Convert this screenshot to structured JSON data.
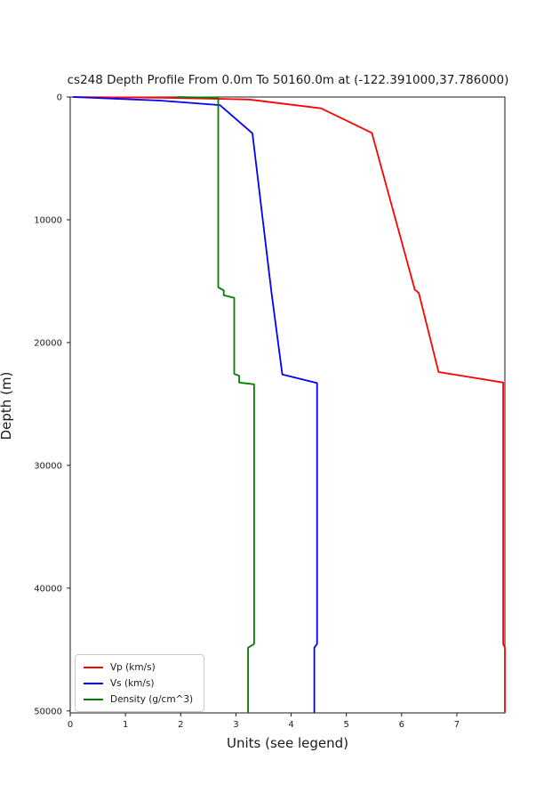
{
  "chart_data": {
    "type": "line",
    "title": "cs248 Depth Profile From 0.0m To 50160.0m at (-122.391000,37.786000)",
    "xlabel": "Units (see legend)",
    "ylabel": "Depth (m)",
    "xlim": [
      0,
      7.87
    ],
    "ylim": [
      0,
      50160
    ],
    "y_axis_direction": "depth-increases-downward",
    "xticks": [
      0,
      1,
      2,
      3,
      4,
      5,
      6,
      7
    ],
    "yticks": [
      0,
      10000,
      20000,
      30000,
      40000,
      50000
    ],
    "grid": false,
    "legend_position": "lower left",
    "series": [
      {
        "name": "Vp (km/s)",
        "color": "#ff0000",
        "points": [
          [
            0.06,
            0
          ],
          [
            1.7,
            60
          ],
          [
            3.24,
            200
          ],
          [
            4.54,
            920
          ],
          [
            5.46,
            2920
          ],
          [
            6.24,
            15700
          ],
          [
            6.31,
            15950
          ],
          [
            6.67,
            22400
          ],
          [
            7.84,
            23250
          ],
          [
            7.84,
            44550
          ],
          [
            7.87,
            44850
          ],
          [
            7.87,
            50160
          ]
        ]
      },
      {
        "name": "Vs (km/s)",
        "color": "#0000ff",
        "points": [
          [
            0.05,
            0
          ],
          [
            1.63,
            290
          ],
          [
            2.71,
            660
          ],
          [
            3.3,
            2960
          ],
          [
            3.64,
            15800
          ],
          [
            3.84,
            22600
          ],
          [
            4.47,
            23300
          ],
          [
            4.47,
            44550
          ],
          [
            4.42,
            44850
          ],
          [
            4.42,
            50160
          ]
        ]
      },
      {
        "name": "Density (g/cm^3)",
        "color": "#008000",
        "points": [
          [
            1.95,
            0
          ],
          [
            2.68,
            60
          ],
          [
            2.68,
            15500
          ],
          [
            2.78,
            15750
          ],
          [
            2.78,
            16150
          ],
          [
            2.97,
            16350
          ],
          [
            2.97,
            22550
          ],
          [
            3.06,
            22700
          ],
          [
            3.06,
            23250
          ],
          [
            3.33,
            23400
          ],
          [
            3.33,
            44550
          ],
          [
            3.22,
            44850
          ],
          [
            3.22,
            50160
          ]
        ]
      }
    ]
  }
}
